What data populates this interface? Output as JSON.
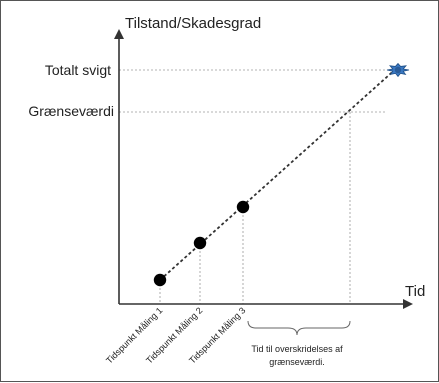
{
  "axes": {
    "y_label": "Tilstand/Skadesgrad",
    "x_label": "Tid"
  },
  "levels": {
    "total_failure": "Totalt svigt",
    "threshold": "Grænseværdi"
  },
  "measurements": [
    "Tidspunkt Måling 1",
    "Tidspunkt Måling 2",
    "Tidspunkt Måling 3"
  ],
  "annotation": {
    "line1": "Tid til overskridelses af",
    "line2": "grænseværdi."
  },
  "colors": {
    "axis": "#333333",
    "guide": "#9a9a9a",
    "point": "#000000",
    "failure_marker": "#3a78c2"
  },
  "icons": {
    "failure_marker": "burst-icon"
  }
}
